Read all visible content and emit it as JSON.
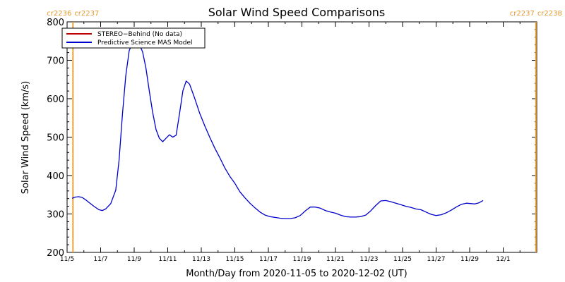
{
  "chart_data": {
    "type": "line",
    "title": "Solar Wind Speed Comparisons",
    "xlabel": "Month/Day from 2020-11-05 to 2020-12-02 (UT)",
    "ylabel": "Solar Wind Speed (km/s)",
    "x_unit": "day of month from 2020-11-05 (UT)",
    "xlim": [
      5.0,
      33.0
    ],
    "ylim": [
      200,
      800
    ],
    "yticks": [
      200,
      300,
      400,
      500,
      600,
      700,
      800
    ],
    "xticks": [
      {
        "value": 5,
        "label": "11/5"
      },
      {
        "value": 7,
        "label": "11/7"
      },
      {
        "value": 9,
        "label": "11/9"
      },
      {
        "value": 11,
        "label": "11/11"
      },
      {
        "value": 13,
        "label": "11/13"
      },
      {
        "value": 15,
        "label": "11/15"
      },
      {
        "value": 17,
        "label": "11/17"
      },
      {
        "value": 19,
        "label": "11/19"
      },
      {
        "value": 21,
        "label": "11/21"
      },
      {
        "value": 23,
        "label": "11/23"
      },
      {
        "value": 25,
        "label": "11/25"
      },
      {
        "value": 27,
        "label": "11/27"
      },
      {
        "value": 29,
        "label": "11/29"
      },
      {
        "value": 31,
        "label": "12/1"
      }
    ],
    "legend": {
      "position": "top-left",
      "entries": [
        {
          "label": "STEREO−Behind (No data)",
          "color": "#c00000"
        },
        {
          "label": "Predictive Science MAS Model",
          "color": "#0000cc"
        }
      ]
    },
    "carrington_markers": [
      {
        "x": 5.35,
        "left_label": "cr2236",
        "right_label": "cr2237",
        "color": "#e8a33a"
      },
      {
        "x": 32.95,
        "left_label": "cr2237",
        "right_label": "cr2238",
        "color": "#e8a33a"
      }
    ],
    "series": [
      {
        "name": "Predictive Science MAS Model",
        "color": "#0000cc",
        "points": [
          [
            5.3,
            341
          ],
          [
            5.5,
            344
          ],
          [
            5.7,
            345
          ],
          [
            5.9,
            343
          ],
          [
            6.1,
            337
          ],
          [
            6.3,
            330
          ],
          [
            6.6,
            320
          ],
          [
            6.9,
            311
          ],
          [
            7.1,
            309
          ],
          [
            7.3,
            313
          ],
          [
            7.6,
            327
          ],
          [
            7.9,
            362
          ],
          [
            8.1,
            440
          ],
          [
            8.3,
            560
          ],
          [
            8.5,
            660
          ],
          [
            8.7,
            725
          ],
          [
            8.9,
            745
          ],
          [
            9.1,
            748
          ],
          [
            9.3,
            742
          ],
          [
            9.5,
            722
          ],
          [
            9.7,
            680
          ],
          [
            9.9,
            620
          ],
          [
            10.1,
            565
          ],
          [
            10.3,
            520
          ],
          [
            10.5,
            497
          ],
          [
            10.7,
            488
          ],
          [
            10.9,
            497
          ],
          [
            11.1,
            506
          ],
          [
            11.3,
            500
          ],
          [
            11.5,
            505
          ],
          [
            11.7,
            560
          ],
          [
            11.9,
            620
          ],
          [
            12.1,
            646
          ],
          [
            12.3,
            638
          ],
          [
            12.6,
            602
          ],
          [
            12.9,
            563
          ],
          [
            13.2,
            530
          ],
          [
            13.5,
            500
          ],
          [
            13.8,
            472
          ],
          [
            14.1,
            447
          ],
          [
            14.4,
            420
          ],
          [
            14.7,
            398
          ],
          [
            15.0,
            380
          ],
          [
            15.3,
            358
          ],
          [
            15.6,
            342
          ],
          [
            15.9,
            328
          ],
          [
            16.2,
            316
          ],
          [
            16.5,
            305
          ],
          [
            16.8,
            297
          ],
          [
            17.1,
            293
          ],
          [
            17.4,
            291
          ],
          [
            17.7,
            289
          ],
          [
            18.0,
            288
          ],
          [
            18.3,
            288
          ],
          [
            18.6,
            290
          ],
          [
            18.9,
            296
          ],
          [
            19.2,
            308
          ],
          [
            19.5,
            318
          ],
          [
            19.8,
            318
          ],
          [
            20.1,
            315
          ],
          [
            20.4,
            309
          ],
          [
            20.7,
            305
          ],
          [
            21.0,
            302
          ],
          [
            21.3,
            297
          ],
          [
            21.6,
            293
          ],
          [
            21.9,
            292
          ],
          [
            22.2,
            292
          ],
          [
            22.5,
            293
          ],
          [
            22.8,
            297
          ],
          [
            23.1,
            308
          ],
          [
            23.4,
            322
          ],
          [
            23.7,
            334
          ],
          [
            24.0,
            335
          ],
          [
            24.3,
            332
          ],
          [
            24.6,
            328
          ],
          [
            24.9,
            324
          ],
          [
            25.2,
            320
          ],
          [
            25.5,
            317
          ],
          [
            25.8,
            313
          ],
          [
            26.1,
            311
          ],
          [
            26.4,
            305
          ],
          [
            26.7,
            299
          ],
          [
            27.0,
            296
          ],
          [
            27.3,
            298
          ],
          [
            27.6,
            303
          ],
          [
            27.9,
            310
          ],
          [
            28.2,
            318
          ],
          [
            28.5,
            325
          ],
          [
            28.8,
            328
          ],
          [
            29.1,
            327
          ],
          [
            29.3,
            326
          ],
          [
            29.55,
            329
          ],
          [
            29.8,
            335
          ]
        ]
      }
    ]
  }
}
